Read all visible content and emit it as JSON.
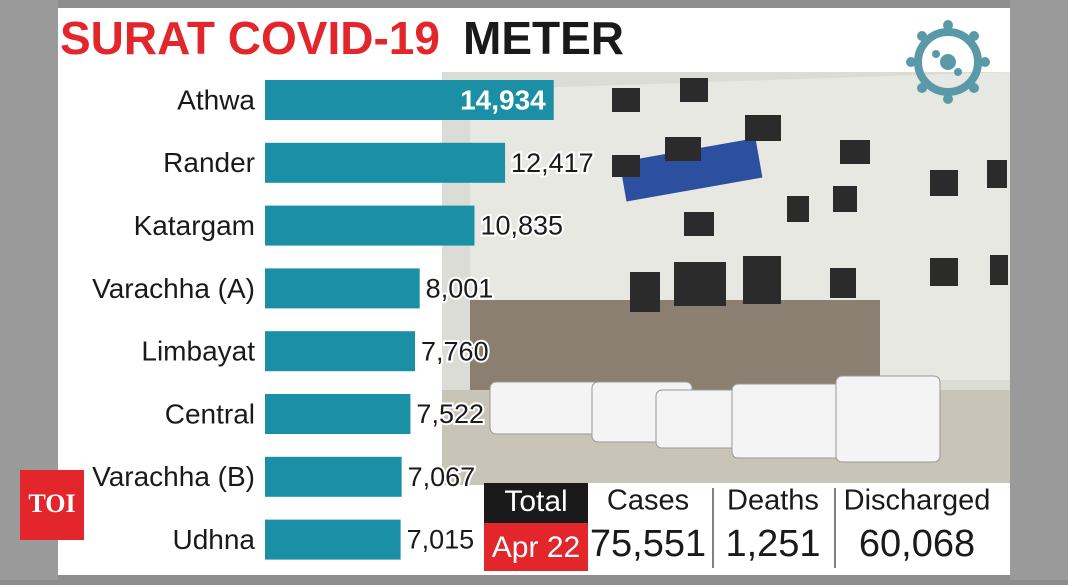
{
  "chart_data": {
    "type": "hbar",
    "title": [
      "SURAT COVID-19",
      "METER"
    ],
    "categories": [
      "Athwa",
      "Rander",
      "Katargam",
      "Varachha (A)",
      "Limbayat",
      "Central",
      "Varachha (B)",
      "Udhna"
    ],
    "values": [
      14934,
      12417,
      10835,
      8001,
      7760,
      7522,
      7067,
      7015
    ],
    "value_labels": [
      "14,934",
      "12,417",
      "10,835",
      "8,001",
      "7,760",
      "7,522",
      "7,067",
      "7,015"
    ],
    "color": "#1b8fa6",
    "xlim": [
      0,
      15000
    ]
  },
  "summary": {
    "label": "Total",
    "date": "Apr 22",
    "columns": [
      {
        "name": "Cases",
        "value": "75,551"
      },
      {
        "name": "Deaths",
        "value": "1,251"
      },
      {
        "name": "Discharged",
        "value": "60,068"
      }
    ]
  },
  "logo": "TOI"
}
